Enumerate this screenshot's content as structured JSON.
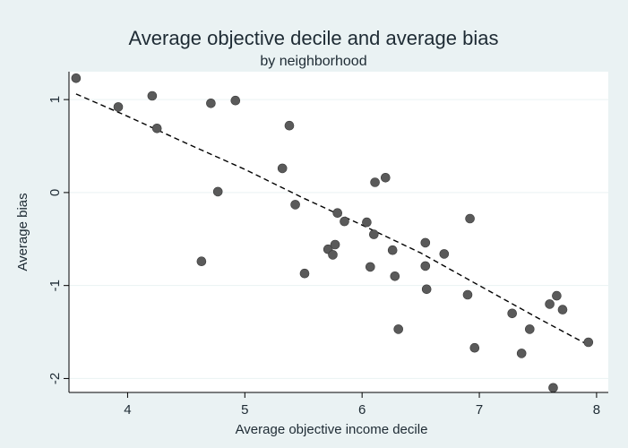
{
  "chart_data": {
    "type": "scatter",
    "title": "Average objective decile and average bias",
    "subtitle": "by neighborhood",
    "xlabel": "Average objective income decile",
    "ylabel": "Average bias",
    "xlim": [
      3.5,
      8.1
    ],
    "ylim": [
      -2.15,
      1.3
    ],
    "xticks": [
      4,
      5,
      6,
      7,
      8
    ],
    "yticks": [
      -2,
      -1,
      0,
      1
    ],
    "grid": true,
    "legend": "none",
    "colors": {
      "marker": "#5a5a5a",
      "fit_line": "#000000",
      "panel_bg": "#ffffff",
      "outer_bg": "#eaf2f3"
    },
    "points": [
      {
        "x": 3.56,
        "y": 1.23
      },
      {
        "x": 3.92,
        "y": 0.92
      },
      {
        "x": 4.21,
        "y": 1.04
      },
      {
        "x": 4.25,
        "y": 0.69
      },
      {
        "x": 4.63,
        "y": -0.74
      },
      {
        "x": 4.71,
        "y": 0.96
      },
      {
        "x": 4.77,
        "y": 0.01
      },
      {
        "x": 4.92,
        "y": 0.99
      },
      {
        "x": 5.32,
        "y": 0.26
      },
      {
        "x": 5.38,
        "y": 0.72
      },
      {
        "x": 5.43,
        "y": -0.13
      },
      {
        "x": 5.51,
        "y": -0.87
      },
      {
        "x": 5.71,
        "y": -0.61
      },
      {
        "x": 5.75,
        "y": -0.67
      },
      {
        "x": 5.77,
        "y": -0.56
      },
      {
        "x": 5.79,
        "y": -0.22
      },
      {
        "x": 5.85,
        "y": -0.31
      },
      {
        "x": 6.04,
        "y": -0.32
      },
      {
        "x": 6.07,
        "y": -0.8
      },
      {
        "x": 6.1,
        "y": -0.45
      },
      {
        "x": 6.11,
        "y": 0.11
      },
      {
        "x": 6.2,
        "y": 0.16
      },
      {
        "x": 6.26,
        "y": -0.62
      },
      {
        "x": 6.28,
        "y": -0.9
      },
      {
        "x": 6.31,
        "y": -1.47
      },
      {
        "x": 6.54,
        "y": -0.54
      },
      {
        "x": 6.54,
        "y": -0.79
      },
      {
        "x": 6.55,
        "y": -1.04
      },
      {
        "x": 6.7,
        "y": -0.66
      },
      {
        "x": 6.9,
        "y": -1.1
      },
      {
        "x": 6.92,
        "y": -0.28
      },
      {
        "x": 6.96,
        "y": -1.67
      },
      {
        "x": 7.28,
        "y": -1.3
      },
      {
        "x": 7.36,
        "y": -1.73
      },
      {
        "x": 7.43,
        "y": -1.47
      },
      {
        "x": 7.6,
        "y": -1.2
      },
      {
        "x": 7.63,
        "y": -2.1
      },
      {
        "x": 7.66,
        "y": -1.11
      },
      {
        "x": 7.71,
        "y": -1.26
      },
      {
        "x": 7.93,
        "y": -1.61
      }
    ],
    "fit_line": {
      "style": "dashed",
      "points": [
        {
          "x": 3.56,
          "y": 1.06
        },
        {
          "x": 4.0,
          "y": 0.82
        },
        {
          "x": 4.5,
          "y": 0.53
        },
        {
          "x": 5.0,
          "y": 0.25
        },
        {
          "x": 5.5,
          "y": -0.06
        },
        {
          "x": 6.0,
          "y": -0.35
        },
        {
          "x": 6.5,
          "y": -0.65
        },
        {
          "x": 7.0,
          "y": -1.0
        },
        {
          "x": 7.5,
          "y": -1.35
        },
        {
          "x": 7.93,
          "y": -1.64
        }
      ]
    }
  }
}
